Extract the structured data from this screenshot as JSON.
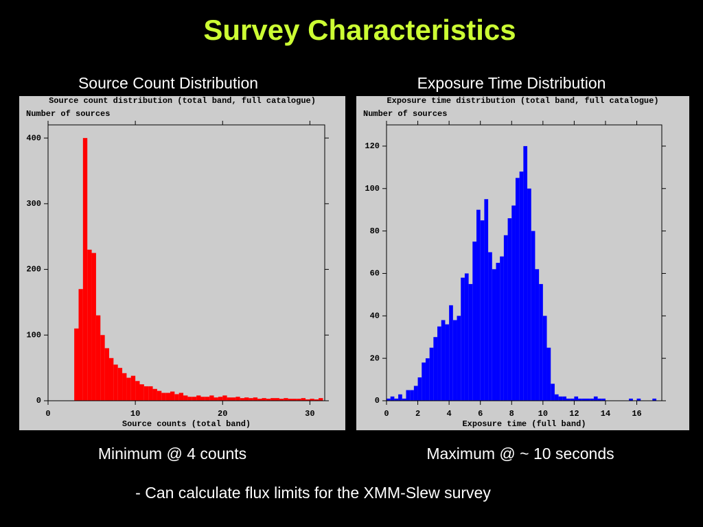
{
  "slide": {
    "title": "Survey  Characteristics",
    "bullet": "- Can calculate flux limits for the XMM-Slew survey"
  },
  "chart_data": [
    {
      "type": "histogram",
      "heading": "Source Count Distribution",
      "title": "Source count distribution (total band, full catalogue)",
      "ylabel": "Number of sources",
      "xlabel": "Source counts (total band)",
      "caption": "Minimum @  4 counts",
      "color": "#ff0000",
      "bins": [
        3,
        3.5,
        4,
        4.5,
        5,
        5.5,
        6,
        6.5,
        7,
        7.5,
        8,
        8.5,
        9,
        9.5,
        10,
        10.5,
        11,
        11.5,
        12,
        12.5,
        13,
        13.5,
        14,
        14.5,
        15,
        15.5,
        16,
        16.5,
        17,
        17.5,
        18,
        18.5,
        19,
        19.5,
        20,
        20.5,
        21,
        21.5,
        22,
        22.5,
        23,
        23.5,
        24,
        24.5,
        25,
        25.5,
        26,
        26.5,
        27,
        27.5,
        28,
        28.5,
        29,
        29.5,
        30,
        30.5,
        31,
        31.5
      ],
      "counts": [
        110,
        170,
        400,
        230,
        225,
        130,
        100,
        80,
        65,
        55,
        50,
        42,
        35,
        38,
        30,
        25,
        22,
        22,
        18,
        15,
        12,
        12,
        14,
        10,
        12,
        8,
        6,
        6,
        8,
        6,
        6,
        8,
        5,
        6,
        8,
        5,
        5,
        6,
        4,
        5,
        4,
        5,
        3,
        4,
        3,
        4,
        4,
        3,
        4,
        3,
        3,
        3,
        4,
        2,
        3,
        2,
        4
      ],
      "xlim": [
        0,
        31.7
      ],
      "ylim": [
        0,
        420
      ],
      "xticks": [
        0,
        10,
        20,
        30
      ],
      "yticks": [
        0,
        100,
        200,
        300,
        400
      ]
    },
    {
      "type": "histogram",
      "heading": "Exposure Time Distribution",
      "title": "Exposure time distribution (total band, full catalogue)",
      "ylabel": "Number of sources",
      "xlabel": "Exposure time (full band)",
      "caption": "Maximum @ ~ 10 seconds",
      "color": "#0000ff",
      "bins": [
        0,
        0.25,
        0.5,
        0.75,
        1,
        1.25,
        1.5,
        1.75,
        2,
        2.25,
        2.5,
        2.75,
        3,
        3.25,
        3.5,
        3.75,
        4,
        4.25,
        4.5,
        4.75,
        5,
        5.25,
        5.5,
        5.75,
        6,
        6.25,
        6.5,
        6.75,
        7,
        7.25,
        7.5,
        7.75,
        8,
        8.25,
        8.5,
        8.75,
        9,
        9.25,
        9.5,
        9.75,
        10,
        10.25,
        10.5,
        10.75,
        11,
        11.25,
        11.5,
        11.75,
        12,
        12.25,
        12.5,
        12.75,
        13,
        13.25,
        13.5,
        13.75,
        14,
        14.25,
        14.5,
        14.75,
        15,
        15.25,
        15.5,
        15.75,
        16,
        16.25,
        16.5,
        16.75,
        17,
        17.25
      ],
      "counts": [
        1,
        2,
        1,
        3,
        1,
        5,
        5,
        7,
        11,
        18,
        20,
        25,
        30,
        35,
        38,
        36,
        45,
        38,
        40,
        58,
        60,
        55,
        75,
        90,
        85,
        95,
        70,
        62,
        65,
        68,
        78,
        86,
        92,
        105,
        108,
        120,
        100,
        80,
        62,
        55,
        40,
        25,
        8,
        3,
        2,
        2,
        1,
        1,
        2,
        1,
        1,
        1,
        1,
        2,
        1,
        1,
        0,
        0,
        0,
        0,
        0,
        0,
        1,
        0,
        1,
        0,
        0,
        0,
        1
      ],
      "xlim": [
        0,
        17.6
      ],
      "ylim": [
        0,
        130
      ],
      "xticks": [
        0,
        2,
        4,
        6,
        8,
        10,
        12,
        14,
        16
      ],
      "yticks": [
        0,
        20,
        40,
        60,
        80,
        100,
        120
      ]
    }
  ]
}
